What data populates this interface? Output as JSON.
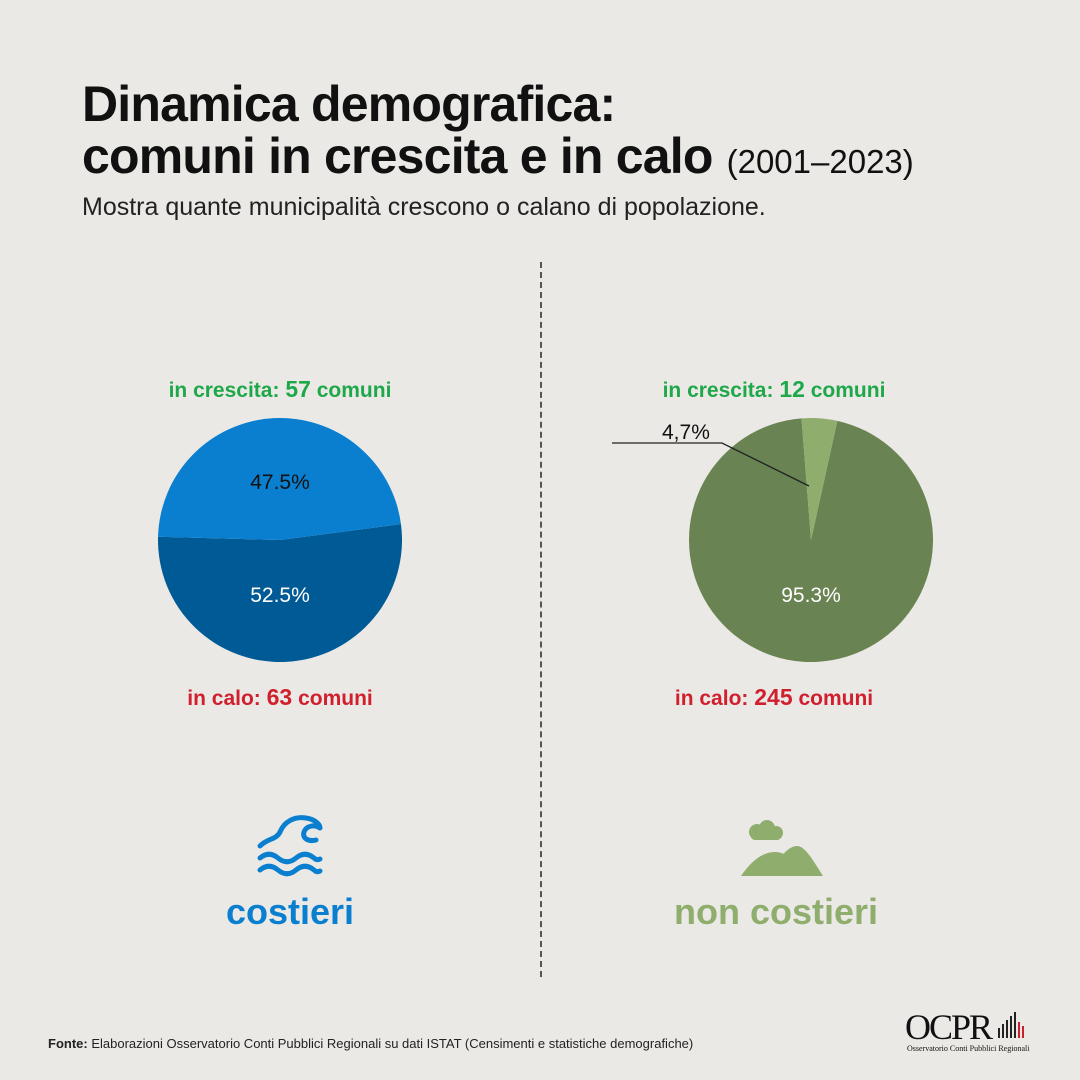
{
  "title_line1": "Dinamica demografica:",
  "title_line2": "comuni in crescita e in calo",
  "title_years": "(2001–2023)",
  "subtitle": "Mostra quante municipalità crescono o calano di popolazione.",
  "colors": {
    "growth_text": "#1fa84a",
    "decline_text": "#d0202e",
    "coastal_growth": "#0a7fd0",
    "coastal_decline": "#005a96",
    "inland_growth": "#8fae6e",
    "inland_decline": "#6a8352",
    "coastal_label": "#0a7fd0",
    "inland_label": "#8fae6e"
  },
  "coastal": {
    "growth_prefix": "in crescita:",
    "growth_count": "57",
    "growth_suffix": "comuni",
    "decline_prefix": "in calo:",
    "decline_count": "63",
    "decline_suffix": "comuni",
    "growth_pct_label": "47.5%",
    "decline_pct_label": "52.5%",
    "category": "costieri",
    "icon": "wave-icon"
  },
  "inland": {
    "growth_prefix": "in crescita:",
    "growth_count": "12",
    "growth_suffix": "comuni",
    "decline_prefix": "in calo:",
    "decline_count": "245",
    "decline_suffix": "comuni",
    "growth_pct_label": "4,7%",
    "decline_pct_label": "95.3%",
    "category": "non costieri",
    "icon": "hills-icon"
  },
  "chart_data": [
    {
      "type": "pie",
      "categories": [
        "in crescita",
        "in calo"
      ],
      "values": [
        57,
        63
      ],
      "percentages": [
        47.5,
        52.5
      ],
      "colors": [
        "#0a7fd0",
        "#005a96"
      ],
      "title": "costieri"
    },
    {
      "type": "pie",
      "categories": [
        "in crescita",
        "in calo"
      ],
      "values": [
        12,
        245
      ],
      "percentages": [
        4.7,
        95.3
      ],
      "colors": [
        "#8fae6e",
        "#6a8352"
      ],
      "title": "non costieri"
    }
  ],
  "footer_label": "Fonte:",
  "footer_text": "Elaborazioni Osservatorio Conti Pubblici Regionali su dati ISTAT (Censimenti e statistiche demografiche)",
  "logo_text": "OCPR",
  "logo_subtitle": "Osservatorio Conti Pubblici Regionali"
}
